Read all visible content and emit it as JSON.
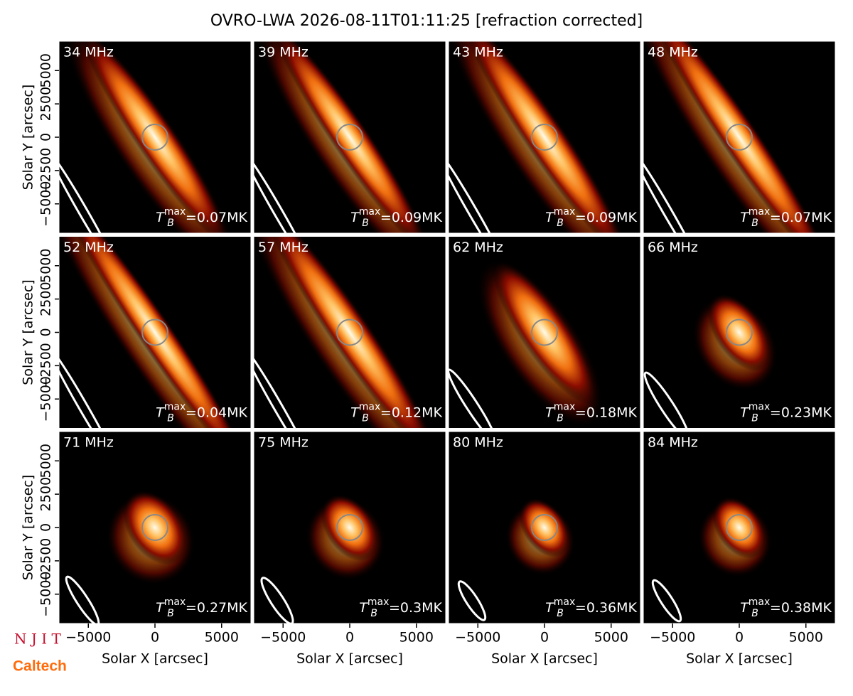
{
  "chart_data": {
    "type": "image-grid",
    "title": "OVRO-LWA 2026-08-11T01:11:25 [refraction corrected]",
    "xlabel": "Solar X [arcsec]",
    "ylabel": "Solar Y [arcsec]",
    "xlim": [
      -7200,
      7200
    ],
    "ylim": [
      -7200,
      7200
    ],
    "xticks": [
      {
        "value": -5000,
        "label": "−5000"
      },
      0,
      5000
    ],
    "yticks": [
      {
        "value": -5000,
        "label": "−5000"
      },
      {
        "value": -2500,
        "label": "−2500"
      },
      0,
      2500,
      5000
    ],
    "tb_label": {
      "symbol": "T",
      "sub": "B",
      "sup": "max",
      "eq": "=",
      "unit": "MK"
    },
    "panels": [
      {
        "label": "34 MHz",
        "tb_max": 0.07
      },
      {
        "label": "39 MHz",
        "tb_max": 0.09
      },
      {
        "label": "43 MHz",
        "tb_max": 0.09
      },
      {
        "label": "48 MHz",
        "tb_max": 0.07
      },
      {
        "label": "52 MHz",
        "tb_max": 0.04
      },
      {
        "label": "57 MHz",
        "tb_max": 0.12
      },
      {
        "label": "62 MHz",
        "tb_max": 0.18
      },
      {
        "label": "66 MHz",
        "tb_max": 0.23
      },
      {
        "label": "71 MHz",
        "tb_max": 0.27
      },
      {
        "label": "75 MHz",
        "tb_max": 0.3
      },
      {
        "label": "80 MHz",
        "tb_max": 0.36
      },
      {
        "label": "84 MHz",
        "tb_max": 0.38
      }
    ],
    "logos": [
      "N J I T",
      "Caltech"
    ]
  }
}
